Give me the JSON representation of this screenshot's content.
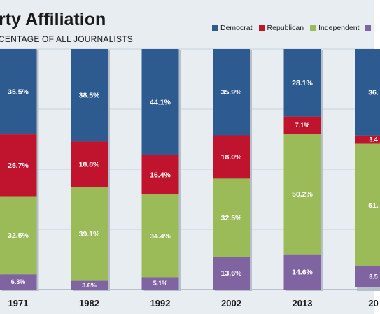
{
  "title": "rty Affiliation",
  "subtitle": "CENTAGE OF ALL JOURNALISTS",
  "legend": [
    {
      "name": "Democrat",
      "color": "#2e5b8f"
    },
    {
      "name": "Republican",
      "color": "#c0142e"
    },
    {
      "name": "Independent",
      "color": "#9bbb59"
    },
    {
      "name": "",
      "color": "#8064a2"
    }
  ],
  "chart_data": {
    "type": "bar",
    "stacked": true,
    "title": "rty Affiliation",
    "subtitle": "CENTAGE OF ALL JOURNALISTS",
    "categories": [
      "1971",
      "1982",
      "1992",
      "2002",
      "2013",
      "20"
    ],
    "ylim": [
      0,
      100
    ],
    "series": [
      {
        "name": "Democrat",
        "color": "#2e5b8f",
        "values": [
          35.5,
          38.5,
          44.1,
          35.9,
          28.1,
          36.0
        ],
        "labels": [
          "35.5%",
          "38.5%",
          "44.1%",
          "35.9%",
          "28.1%",
          "36."
        ]
      },
      {
        "name": "Republican",
        "color": "#c0142e",
        "values": [
          25.7,
          18.8,
          16.4,
          18.0,
          7.1,
          3.4
        ],
        "labels": [
          "25.7%",
          "18.8%",
          "16.4%",
          "18.0%",
          "7.1%",
          "3.4"
        ]
      },
      {
        "name": "Independent",
        "color": "#9bbb59",
        "values": [
          32.5,
          39.1,
          34.4,
          32.5,
          50.2,
          51.0
        ],
        "labels": [
          "32.5%",
          "39.1%",
          "34.4%",
          "32.5%",
          "50.2%",
          "51."
        ]
      },
      {
        "name": "",
        "color": "#8064a2",
        "values": [
          6.3,
          3.6,
          5.1,
          13.6,
          14.6,
          8.5
        ],
        "labels": [
          "6.3%",
          "3.6%",
          "5.1%",
          "13.6%",
          "14.6%",
          "8.5"
        ]
      }
    ]
  }
}
